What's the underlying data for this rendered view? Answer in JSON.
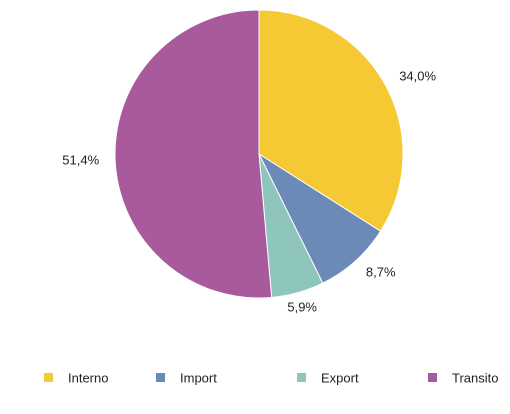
{
  "chart_data": {
    "type": "pie",
    "categories": [
      "Interno",
      "Import",
      "Export",
      "Transito"
    ],
    "values": [
      34.0,
      8.7,
      5.9,
      51.4
    ],
    "value_labels": [
      "34,0%",
      "8,7%",
      "5,9%",
      "51,4%"
    ],
    "colors": [
      "#f5c834",
      "#6c8ab8",
      "#8ec5bc",
      "#a85a9c"
    ],
    "legend": "bottom"
  }
}
